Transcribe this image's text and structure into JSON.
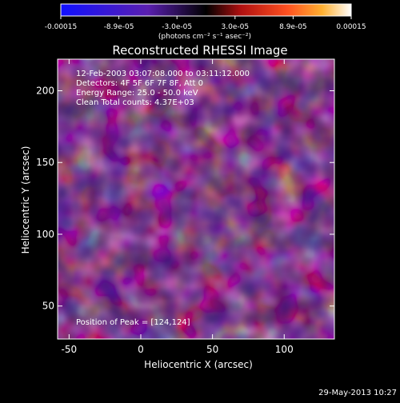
{
  "chart_data": {
    "type": "heatmap",
    "title": "Reconstructed RHESSI Image",
    "xlabel": "Heliocentric X (arcsec)",
    "ylabel": "Heliocentric Y (arcsec)",
    "xlim": [
      -58,
      135
    ],
    "ylim": [
      27,
      222
    ],
    "x_ticks": [
      -50,
      0,
      50,
      100
    ],
    "y_ticks": [
      50,
      100,
      150,
      200
    ],
    "colorbar": {
      "units": "(photons cm⁻² s⁻¹ asec⁻²)",
      "ticks": [
        "-0.00015",
        "-8.9e-05",
        "-3.0e-05",
        "3.0e-05",
        "8.9e-05",
        "0.00015"
      ],
      "tick_values": [
        -0.00015,
        -8.9e-05,
        -3e-05,
        3e-05,
        8.9e-05,
        0.00015
      ],
      "colors": [
        "#1010ff",
        "#5a1fb0",
        "#000000",
        "#c01010",
        "#ff9020",
        "#ffffff"
      ]
    },
    "annotations": [
      "12-Feb-2003 03:07:08.000 to 03:11:12.000",
      "Detectors: 4F 5F 6F 7F 8F, Att 0",
      "Energy Range: 25.0 - 50.0 keV",
      "Clean     Total counts: 4.37E+03"
    ],
    "peak_label": "Position of Peak = [124,124]",
    "timestamp": "29-May-2013 10:27"
  }
}
